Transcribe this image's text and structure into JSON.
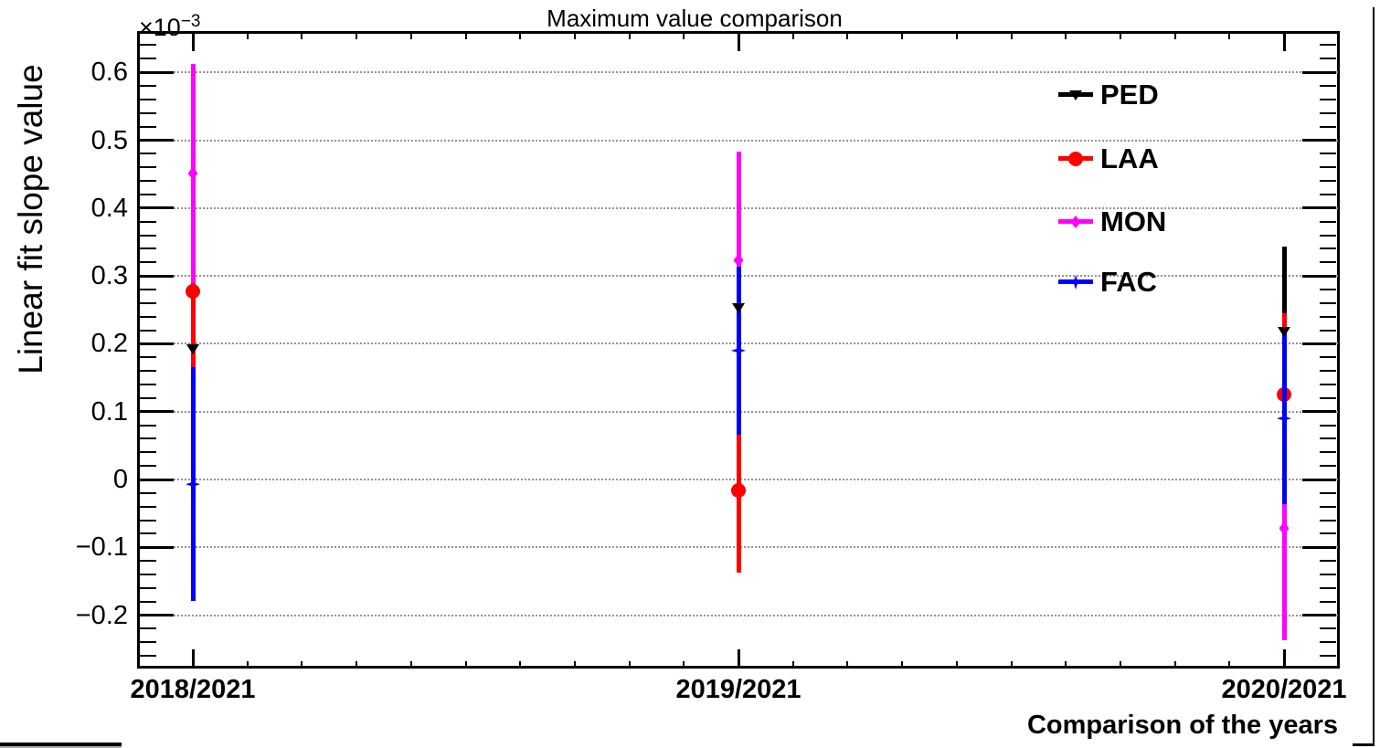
{
  "chart_data": {
    "type": "scatter",
    "title": "Maximum value comparison",
    "xlabel": "Comparison of the years",
    "ylabel": "Linear fit slope value",
    "y_scale_label": "×10",
    "y_scale_exponent": "−3",
    "units_note": "all y values in units of 10^-3",
    "categories": [
      "2018/2021",
      "2019/2021",
      "2020/2021"
    ],
    "y_ticks": [
      {
        "label": "0.6",
        "value": 0.6
      },
      {
        "label": "0.5",
        "value": 0.5
      },
      {
        "label": "0.4",
        "value": 0.4
      },
      {
        "label": "0.3",
        "value": 0.3
      },
      {
        "label": "0.2",
        "value": 0.2
      },
      {
        "label": "0.1",
        "value": 0.1
      },
      {
        "label": "0",
        "value": 0.0
      },
      {
        "label": "−0.1",
        "value": -0.1
      },
      {
        "label": "−0.2",
        "value": -0.2
      }
    ],
    "ylim": [
      -0.277,
      0.66
    ],
    "y_minor_step": 0.02,
    "grid": "horizontal-dotted",
    "legend_position": "top-right",
    "series": [
      {
        "name": "PED",
        "color": "#000000",
        "marker": "triangle-down",
        "values": [
          0.192,
          0.252,
          0.217
        ],
        "errors": [
          0.15,
          0.1,
          0.126
        ]
      },
      {
        "name": "LAA",
        "color": "#ff0000",
        "marker": "circle",
        "values": [
          0.277,
          -0.016,
          0.125
        ],
        "errors": [
          0.113,
          0.121,
          0.12
        ]
      },
      {
        "name": "MON",
        "color": "#ff00ff",
        "marker": "diamond",
        "values": [
          0.451,
          0.323,
          -0.072
        ],
        "errors": [
          0.162,
          0.16,
          0.165
        ]
      },
      {
        "name": "FAC",
        "color": "#0000ff",
        "marker": "star4",
        "values": [
          -0.007,
          0.19,
          0.09
        ],
        "errors": [
          0.172,
          0.124,
          0.127
        ]
      }
    ]
  }
}
